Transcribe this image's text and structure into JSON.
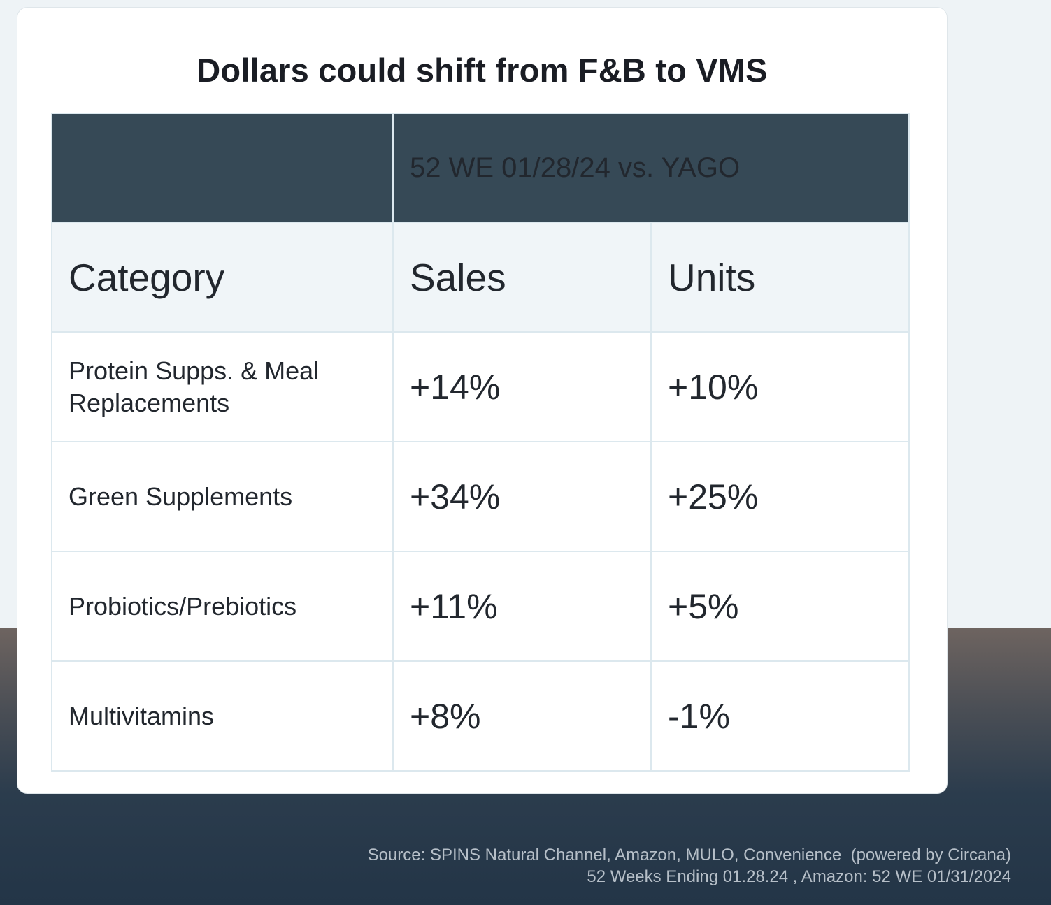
{
  "chart_data": {
    "type": "table",
    "title": "Dollars could shift from F&B to VMS",
    "period_header": "52 WE 01/28/24 vs. YAGO",
    "columns": [
      "Category",
      "Sales",
      "Units"
    ],
    "rows": [
      {
        "category": "Protein Supps. & Meal Replacements",
        "sales": "+14%",
        "units": "+10%"
      },
      {
        "category": "Green Supplements",
        "sales": "+34%",
        "units": "+25%"
      },
      {
        "category": "Probiotics/Prebiotics",
        "sales": "+11%",
        "units": "+5%"
      },
      {
        "category": "Multivitamins",
        "sales": "+8%",
        "units": "-1%"
      }
    ]
  },
  "source": {
    "line1": "Source: SPINS Natural Channel, Amazon, MULO, Convenience  (powered by Circana)",
    "line2": "52 Weeks Ending 01.28.24 , Amazon: 52 WE 01/31/2024"
  },
  "colors": {
    "header_bg": "#364956",
    "subheader_bg": "#f0f5f8",
    "border": "#dce8ee"
  }
}
